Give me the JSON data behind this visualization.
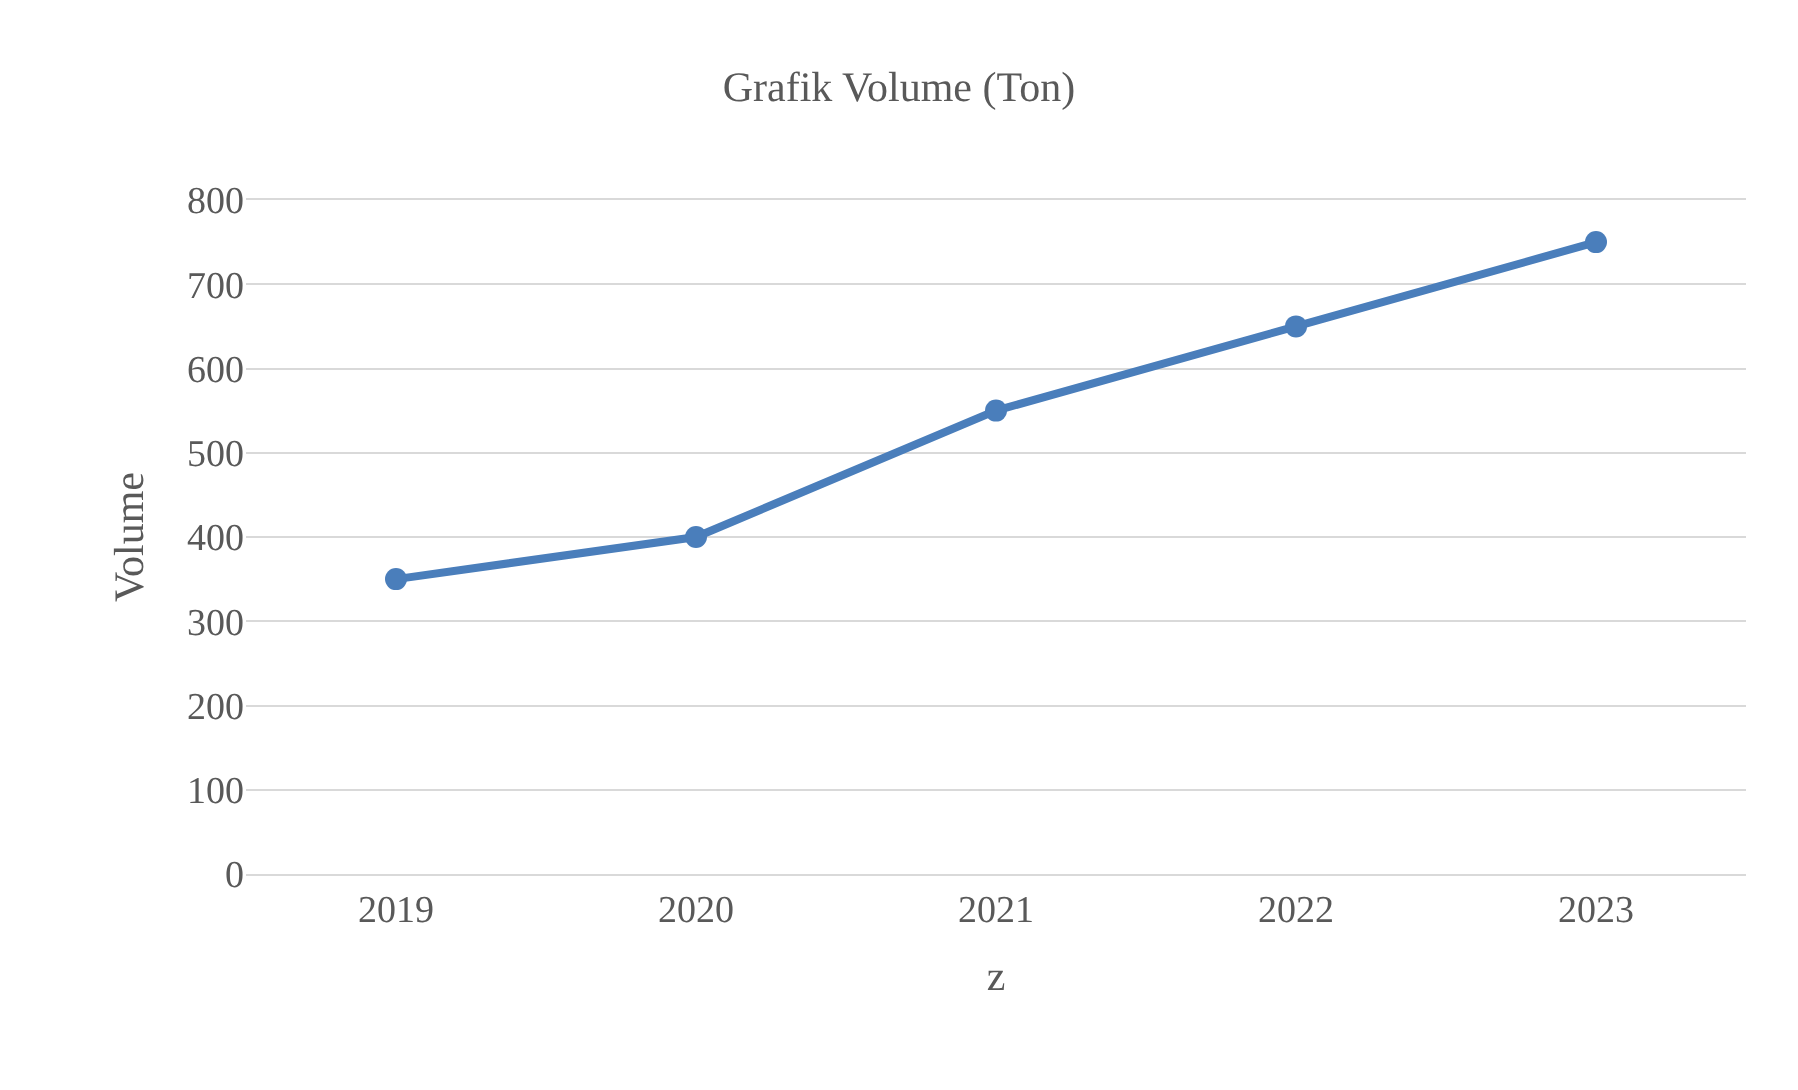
{
  "chart_data": {
    "type": "line",
    "title": "Grafik Volume (Ton)",
    "xlabel": "z",
    "ylabel": "Volume",
    "categories": [
      "2019",
      "2020",
      "2021",
      "2022",
      "2023"
    ],
    "series": [
      {
        "color": "#4a7ebb",
        "values": [
          350,
          400,
          550,
          650,
          750
        ]
      }
    ],
    "ylim": [
      0,
      800
    ],
    "yticks": [
      0,
      100,
      200,
      300,
      400,
      500,
      600,
      700,
      800
    ],
    "grid": "y",
    "marker": "circle",
    "line_style": "solid"
  }
}
